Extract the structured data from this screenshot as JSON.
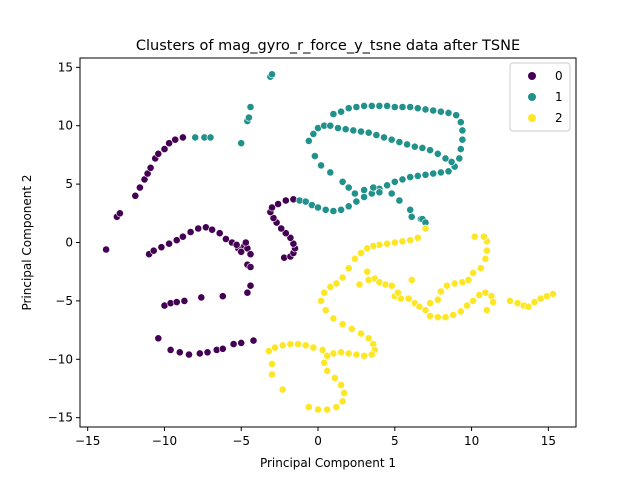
{
  "chart_data": {
    "type": "scatter",
    "title": "Clusters of mag_gyro_r_force_y_tsne data after TSNE",
    "xlabel": "Principal Component 1",
    "ylabel": "Principal Component 2",
    "xlim": [
      -15.5,
      16.8
    ],
    "ylim": [
      -15.8,
      15.8
    ],
    "xticks": [
      -15,
      -10,
      -5,
      0,
      5,
      10,
      15
    ],
    "yticks": [
      -15,
      -10,
      -5,
      0,
      5,
      10,
      15
    ],
    "xtick_labels": [
      "−15",
      "−10",
      "−5",
      "0",
      "5",
      "10",
      "15"
    ],
    "ytick_labels": [
      "−15",
      "−10",
      "−5",
      "0",
      "5",
      "10",
      "15"
    ],
    "legend_position": "upper-right",
    "grid": false,
    "series": [
      {
        "name": "0",
        "color": "#440154",
        "points": [
          [
            -13.8,
            -0.6
          ],
          [
            -13.1,
            2.2
          ],
          [
            -12.9,
            2.5
          ],
          [
            -11.9,
            4.0
          ],
          [
            -11.6,
            4.7
          ],
          [
            -11.3,
            5.4
          ],
          [
            -11.1,
            5.9
          ],
          [
            -10.9,
            6.4
          ],
          [
            -10.6,
            7.2
          ],
          [
            -10.4,
            7.6
          ],
          [
            -10.0,
            8.0
          ],
          [
            -9.7,
            8.5
          ],
          [
            -9.3,
            8.8
          ],
          [
            -8.8,
            9.0
          ],
          [
            -11.0,
            -1.0
          ],
          [
            -10.7,
            -0.7
          ],
          [
            -10.2,
            -0.4
          ],
          [
            -9.7,
            -0.1
          ],
          [
            -9.2,
            0.2
          ],
          [
            -8.8,
            0.5
          ],
          [
            -8.3,
            0.9
          ],
          [
            -7.8,
            1.2
          ],
          [
            -7.3,
            1.3
          ],
          [
            -6.9,
            1.1
          ],
          [
            -6.4,
            0.8
          ],
          [
            -6.0,
            0.3
          ],
          [
            -5.6,
            0.0
          ],
          [
            -5.2,
            -0.5
          ],
          [
            -4.8,
            -0.3
          ],
          [
            -4.6,
            -0.5
          ],
          [
            -4.4,
            -1.0
          ],
          [
            -4.6,
            -1.9
          ],
          [
            -4.4,
            -2.1
          ],
          [
            -5.3,
            -0.2
          ],
          [
            -5.0,
            -0.8
          ],
          [
            -4.7,
            0.0
          ],
          [
            -10.0,
            -5.4
          ],
          [
            -9.6,
            -5.2
          ],
          [
            -9.2,
            -5.1
          ],
          [
            -8.7,
            -5.0
          ],
          [
            -7.6,
            -4.7
          ],
          [
            -6.2,
            -4.6
          ],
          [
            -4.4,
            -3.7
          ],
          [
            -4.6,
            -4.3
          ],
          [
            -10.4,
            -8.2
          ],
          [
            -9.6,
            -9.2
          ],
          [
            -9.0,
            -9.4
          ],
          [
            -8.4,
            -9.6
          ],
          [
            -7.7,
            -9.5
          ],
          [
            -7.2,
            -9.4
          ],
          [
            -6.6,
            -9.2
          ],
          [
            -6.2,
            -9.1
          ],
          [
            -5.5,
            -8.7
          ],
          [
            -5.0,
            -8.6
          ],
          [
            -4.2,
            -8.4
          ],
          [
            -2.2,
            -1.3
          ],
          [
            -1.8,
            -1.2
          ],
          [
            -1.6,
            -0.9
          ],
          [
            -1.5,
            -0.5
          ],
          [
            -1.6,
            -0.1
          ],
          [
            -1.8,
            0.4
          ],
          [
            -2.1,
            0.8
          ],
          [
            -2.4,
            1.2
          ],
          [
            -2.7,
            1.7
          ],
          [
            -2.9,
            2.1
          ],
          [
            -3.1,
            2.6
          ],
          [
            -3.0,
            3.0
          ],
          [
            -2.6,
            3.3
          ],
          [
            -2.1,
            3.6
          ],
          [
            -1.6,
            3.7
          ]
        ]
      },
      {
        "name": "1",
        "color": "#21918c",
        "points": [
          [
            -8.0,
            9.0
          ],
          [
            -7.4,
            9.0
          ],
          [
            -7.0,
            9.0
          ],
          [
            -5.0,
            8.5
          ],
          [
            -4.6,
            10.4
          ],
          [
            -4.5,
            10.7
          ],
          [
            -4.4,
            11.6
          ],
          [
            -3.1,
            14.2
          ],
          [
            -3.0,
            14.4
          ],
          [
            -1.2,
            3.6
          ],
          [
            -0.8,
            3.5
          ],
          [
            -0.4,
            3.2
          ],
          [
            0.0,
            3.0
          ],
          [
            0.5,
            2.8
          ],
          [
            1.0,
            2.7
          ],
          [
            1.5,
            2.8
          ],
          [
            2.0,
            3.1
          ],
          [
            2.5,
            3.5
          ],
          [
            3.0,
            3.9
          ],
          [
            3.5,
            4.2
          ],
          [
            4.0,
            4.6
          ],
          [
            4.5,
            4.9
          ],
          [
            5.0,
            5.2
          ],
          [
            5.5,
            5.4
          ],
          [
            6.0,
            5.6
          ],
          [
            6.5,
            5.7
          ],
          [
            7.0,
            5.8
          ],
          [
            7.5,
            5.9
          ],
          [
            8.0,
            6.0
          ],
          [
            8.5,
            6.1
          ],
          [
            8.9,
            6.5
          ],
          [
            9.2,
            7.2
          ],
          [
            9.3,
            8.0
          ],
          [
            9.4,
            8.8
          ],
          [
            9.4,
            9.6
          ],
          [
            9.3,
            10.3
          ],
          [
            9.0,
            10.9
          ],
          [
            8.5,
            11.1
          ],
          [
            8.0,
            11.2
          ],
          [
            7.5,
            11.3
          ],
          [
            7.0,
            11.4
          ],
          [
            6.5,
            11.5
          ],
          [
            6.0,
            11.6
          ],
          [
            5.5,
            11.6
          ],
          [
            5.0,
            11.6
          ],
          [
            4.5,
            11.7
          ],
          [
            4.0,
            11.7
          ],
          [
            3.5,
            11.7
          ],
          [
            3.0,
            11.7
          ],
          [
            2.5,
            11.6
          ],
          [
            2.0,
            11.5
          ],
          [
            1.5,
            11.2
          ],
          [
            1.0,
            11.0
          ],
          [
            -0.6,
            8.7
          ],
          [
            -0.3,
            9.3
          ],
          [
            0.0,
            9.8
          ],
          [
            0.4,
            10.0
          ],
          [
            0.8,
            10.0
          ],
          [
            1.3,
            9.8
          ],
          [
            1.8,
            9.7
          ],
          [
            2.3,
            9.6
          ],
          [
            2.8,
            9.5
          ],
          [
            3.3,
            9.4
          ],
          [
            3.8,
            9.2
          ],
          [
            4.3,
            9.0
          ],
          [
            4.8,
            8.8
          ],
          [
            5.3,
            8.6
          ],
          [
            5.8,
            8.4
          ],
          [
            6.3,
            8.2
          ],
          [
            6.8,
            8.1
          ],
          [
            7.3,
            7.9
          ],
          [
            7.8,
            7.6
          ],
          [
            8.3,
            7.2
          ],
          [
            8.7,
            6.9
          ],
          [
            -0.2,
            7.4
          ],
          [
            0.2,
            6.6
          ],
          [
            0.8,
            6.0
          ],
          [
            1.6,
            5.2
          ],
          [
            2.0,
            4.7
          ],
          [
            2.4,
            4.2
          ],
          [
            3.0,
            4.5
          ],
          [
            3.6,
            4.7
          ],
          [
            4.0,
            4.3
          ],
          [
            4.8,
            4.2
          ],
          [
            5.3,
            3.6
          ],
          [
            6.1,
            2.2
          ],
          [
            6.7,
            2.0
          ],
          [
            6.8,
            2.0
          ],
          [
            7.0,
            1.7
          ],
          [
            6.0,
            2.8
          ]
        ]
      },
      {
        "name": "2",
        "color": "#fde725",
        "points": [
          [
            7.0,
            1.2
          ],
          [
            6.5,
            0.4
          ],
          [
            6.0,
            0.2
          ],
          [
            5.5,
            0.1
          ],
          [
            5.0,
            0.0
          ],
          [
            4.5,
            -0.1
          ],
          [
            4.0,
            -0.2
          ],
          [
            3.6,
            -0.3
          ],
          [
            3.2,
            -0.5
          ],
          [
            2.8,
            -0.9
          ],
          [
            2.4,
            -1.4
          ],
          [
            2.0,
            -2.2
          ],
          [
            1.6,
            -3.0
          ],
          [
            1.2,
            -3.5
          ],
          [
            0.8,
            -3.8
          ],
          [
            0.4,
            -4.3
          ],
          [
            0.2,
            -5.0
          ],
          [
            0.5,
            -5.8
          ],
          [
            1.0,
            -6.5
          ],
          [
            1.6,
            -7.0
          ],
          [
            2.2,
            -7.4
          ],
          [
            2.8,
            -7.8
          ],
          [
            3.3,
            -8.2
          ],
          [
            3.6,
            -8.7
          ],
          [
            3.7,
            -9.2
          ],
          [
            3.5,
            -9.6
          ],
          [
            3.0,
            -9.7
          ],
          [
            2.5,
            -9.6
          ],
          [
            2.0,
            -9.5
          ],
          [
            1.5,
            -9.4
          ],
          [
            1.0,
            -9.5
          ],
          [
            0.6,
            -9.7
          ],
          [
            0.4,
            -10.3
          ],
          [
            0.6,
            -11.0
          ],
          [
            1.1,
            -11.6
          ],
          [
            1.5,
            -12.2
          ],
          [
            1.7,
            -12.9
          ],
          [
            1.6,
            -13.6
          ],
          [
            1.2,
            -14.1
          ],
          [
            0.6,
            -14.3
          ],
          [
            0.0,
            -14.3
          ],
          [
            -0.6,
            -14.1
          ],
          [
            -3.2,
            -9.3
          ],
          [
            -2.8,
            -9.0
          ],
          [
            -2.3,
            -8.8
          ],
          [
            -1.8,
            -8.7
          ],
          [
            -1.3,
            -8.7
          ],
          [
            -0.8,
            -8.8
          ],
          [
            -0.3,
            -9.0
          ],
          [
            0.3,
            -9.2
          ],
          [
            -3.0,
            -10.4
          ],
          [
            -3.0,
            -11.3
          ],
          [
            -2.3,
            -12.6
          ],
          [
            3.2,
            -2.5
          ],
          [
            3.3,
            -3.2
          ],
          [
            3.7,
            -3.1
          ],
          [
            4.0,
            -3.4
          ],
          [
            4.4,
            -3.6
          ],
          [
            4.8,
            -3.7
          ],
          [
            5.0,
            -4.6
          ],
          [
            5.4,
            -4.8
          ],
          [
            5.9,
            -4.8
          ],
          [
            6.3,
            -5.2
          ],
          [
            6.6,
            -5.5
          ],
          [
            7.0,
            -5.8
          ],
          [
            7.3,
            -5.2
          ],
          [
            7.8,
            -4.9
          ],
          [
            8.0,
            -4.2
          ],
          [
            8.4,
            -3.7
          ],
          [
            8.9,
            -3.5
          ],
          [
            9.4,
            -3.4
          ],
          [
            9.8,
            -3.2
          ],
          [
            10.1,
            -2.6
          ],
          [
            10.6,
            -2.2
          ],
          [
            10.9,
            -1.4
          ],
          [
            11.0,
            -0.7
          ],
          [
            11.0,
            0.1
          ],
          [
            10.8,
            0.5
          ],
          [
            10.2,
            0.5
          ],
          [
            7.3,
            -6.3
          ],
          [
            7.8,
            -6.4
          ],
          [
            8.3,
            -6.4
          ],
          [
            8.8,
            -6.2
          ],
          [
            9.3,
            -5.9
          ],
          [
            9.7,
            -5.4
          ],
          [
            10.1,
            -5.0
          ],
          [
            10.5,
            -4.5
          ],
          [
            10.9,
            -4.3
          ],
          [
            11.3,
            -4.6
          ],
          [
            11.4,
            -5.1
          ],
          [
            11.0,
            -5.8
          ],
          [
            12.5,
            -5.0
          ],
          [
            13.0,
            -5.2
          ],
          [
            13.4,
            -5.4
          ],
          [
            13.7,
            -5.5
          ],
          [
            14.1,
            -5.1
          ],
          [
            14.5,
            -4.8
          ],
          [
            14.9,
            -4.6
          ],
          [
            15.3,
            -4.4
          ],
          [
            2.7,
            -3.6
          ],
          [
            5.2,
            -4.3
          ],
          [
            6.1,
            -3.2
          ]
        ]
      }
    ]
  }
}
